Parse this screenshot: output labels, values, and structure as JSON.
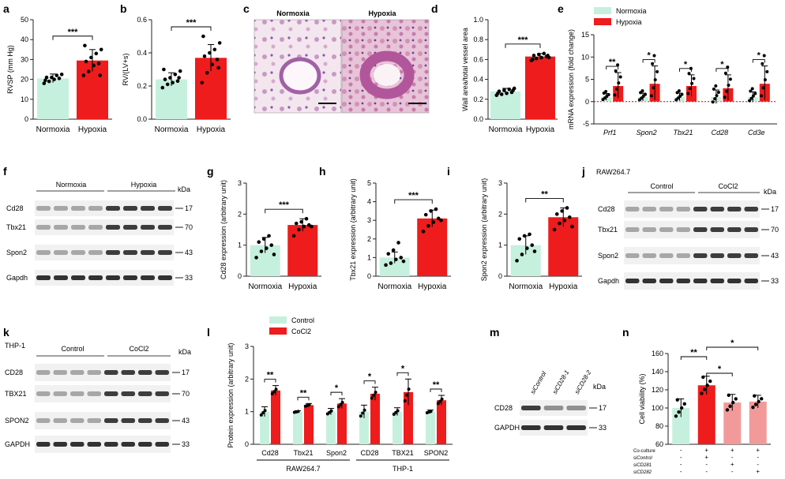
{
  "colors": {
    "normoxia": "#c6f0de",
    "hypoxia": "#ee1c1c",
    "control_light": "#c6f0de",
    "sirna_pink": "#f29a9a",
    "axis": "#222222"
  },
  "panel_letters": [
    "a",
    "b",
    "c",
    "d",
    "e",
    "f",
    "g",
    "h",
    "i",
    "j",
    "k",
    "l",
    "m",
    "n"
  ],
  "chart_data": [
    {
      "id": "a",
      "type": "bar",
      "categories": [
        "Normoxia",
        "Hypoxia"
      ],
      "values": [
        20.5,
        29.5
      ],
      "errors": [
        2.2,
        5.5
      ],
      "points": [
        [
          18,
          19,
          20,
          20.5,
          21,
          21,
          22,
          22.5,
          19.5
        ],
        [
          22,
          24,
          27,
          28,
          29,
          31,
          33,
          35,
          37,
          22
        ]
      ],
      "ylabel": "RVSP (mm Hg)",
      "ylim": [
        0,
        50
      ],
      "yticks": [
        0,
        10,
        20,
        30,
        40,
        50
      ],
      "significance": "***",
      "grid": false
    },
    {
      "id": "b",
      "type": "bar",
      "categories": [
        "Normoxia",
        "Hypoxia"
      ],
      "values": [
        0.24,
        0.37
      ],
      "errors": [
        0.04,
        0.08
      ],
      "points": [
        [
          0.19,
          0.21,
          0.22,
          0.23,
          0.24,
          0.25,
          0.27,
          0.29,
          0.3,
          0.25
        ],
        [
          0.22,
          0.28,
          0.33,
          0.36,
          0.38,
          0.4,
          0.42,
          0.46,
          0.5,
          0.31
        ]
      ],
      "ylabel": "RV/(LV+s)",
      "ylim": [
        0,
        0.6
      ],
      "yticks": [
        0.0,
        0.2,
        0.4,
        0.6
      ],
      "significance": "***",
      "grid": false
    },
    {
      "id": "d",
      "type": "bar",
      "categories": [
        "Normoxia",
        "Hypoxia"
      ],
      "values": [
        0.28,
        0.63
      ],
      "errors": [
        0.03,
        0.03
      ],
      "points": [
        [
          0.24,
          0.25,
          0.26,
          0.27,
          0.28,
          0.29,
          0.3,
          0.31,
          0.26,
          0.29
        ],
        [
          0.59,
          0.61,
          0.62,
          0.63,
          0.64,
          0.65,
          0.66,
          0.62,
          0.6,
          0.64
        ]
      ],
      "ylabel": "Wall area/total vessel area",
      "ylim": [
        0,
        1.0
      ],
      "yticks": [
        0.0,
        0.2,
        0.4,
        0.6,
        0.8,
        1.0
      ],
      "significance": "***",
      "grid": false
    },
    {
      "id": "e",
      "type": "bar",
      "categories": [
        "Prf1",
        "Spon2",
        "Tbx21",
        "Cd28",
        "Cd3e"
      ],
      "series": [
        {
          "name": "Normoxia",
          "values": [
            1.0,
            1.0,
            1.0,
            1.0,
            1.0
          ],
          "errors": [
            0.8,
            0.9,
            0.9,
            1.6,
            1.2
          ]
        },
        {
          "name": "Hypoxia",
          "values": [
            3.5,
            4.0,
            3.5,
            3.0,
            4.0
          ],
          "errors": [
            3,
            4,
            2.5,
            3,
            4
          ]
        }
      ],
      "ylabel": "mRNA expression (fold change)",
      "ylim": [
        -5,
        15
      ],
      "yticks": [
        -5,
        0,
        5,
        10,
        15
      ],
      "significance": [
        "**",
        "*",
        "*",
        "*",
        "*"
      ],
      "legend": "top",
      "grid": false
    },
    {
      "id": "g",
      "type": "bar",
      "categories": [
        "Normoxia",
        "Hypoxia"
      ],
      "values": [
        1.0,
        1.65
      ],
      "errors": [
        0.25,
        0.2
      ],
      "points": [
        [
          0.6,
          0.8,
          0.9,
          1.0,
          1.1,
          1.2,
          1.3,
          0.7
        ],
        [
          1.3,
          1.5,
          1.6,
          1.65,
          1.7,
          1.75,
          1.85,
          1.6
        ]
      ],
      "ylabel": "Cd28 expression (arbitrary unit)",
      "ylim": [
        0,
        3
      ],
      "yticks": [
        0,
        1,
        2,
        3
      ],
      "significance": "***",
      "grid": false
    },
    {
      "id": "h",
      "type": "bar",
      "categories": [
        "Normoxia",
        "Hypoxia"
      ],
      "values": [
        1.0,
        3.1
      ],
      "errors": [
        0.3,
        0.45
      ],
      "points": [
        [
          0.6,
          0.7,
          0.9,
          1.0,
          1.2,
          1.4,
          1.8,
          0.8
        ],
        [
          2.4,
          2.7,
          2.9,
          3.1,
          3.3,
          3.5,
          3.6,
          3.0
        ]
      ],
      "ylabel": "Tbx21 expression (arbitrary unit)",
      "ylim": [
        0,
        5
      ],
      "yticks": [
        0,
        1,
        2,
        3,
        4,
        5
      ],
      "significance": "***",
      "grid": false
    },
    {
      "id": "i",
      "type": "bar",
      "categories": [
        "Normoxia",
        "Hypoxia"
      ],
      "values": [
        1.0,
        1.9
      ],
      "errors": [
        0.3,
        0.3
      ],
      "points": [
        [
          0.5,
          0.7,
          0.9,
          1.0,
          1.2,
          1.3,
          1.35,
          0.8
        ],
        [
          1.5,
          1.7,
          1.8,
          1.9,
          2.0,
          2.1,
          2.2,
          1.6
        ]
      ],
      "ylabel": "Spon2 expression (arbitrary unit)",
      "ylim": [
        0,
        3
      ],
      "yticks": [
        0,
        1,
        2,
        3
      ],
      "significance": "**",
      "grid": false
    },
    {
      "id": "l",
      "type": "bar",
      "categories": [
        "Cd28",
        "Tbx21",
        "Spon2",
        "CD28",
        "TBX21",
        "SPON2"
      ],
      "series": [
        {
          "name": "Control",
          "values": [
            1.0,
            1.0,
            1.0,
            1.0,
            1.0,
            1.0
          ],
          "errors": [
            0.15,
            0.03,
            0.1,
            0.2,
            0.12,
            0.05
          ]
        },
        {
          "name": "CoCl2",
          "values": [
            1.65,
            1.2,
            1.25,
            1.55,
            1.6,
            1.35
          ],
          "errors": [
            0.15,
            0.05,
            0.15,
            0.2,
            0.4,
            0.15
          ]
        }
      ],
      "groups": [
        "RAW264.7",
        "THP-1"
      ],
      "ylabel": "Protein expression (arbitrary unit)",
      "ylim": [
        0,
        3
      ],
      "yticks": [
        0,
        1,
        2,
        3
      ],
      "significance": [
        "**",
        "**",
        "*",
        "*",
        "*",
        "**"
      ],
      "legend": "top",
      "grid": false
    },
    {
      "id": "n",
      "type": "bar",
      "categories": [
        "1",
        "2",
        "3",
        "4"
      ],
      "values": [
        100,
        125,
        106,
        107
      ],
      "errors": [
        10,
        10,
        9,
        7
      ],
      "colors": [
        "#c6f0de",
        "#ee1c1c",
        "#f29a9a",
        "#f29a9a"
      ],
      "ylabel": "Cell viability (%)",
      "ylim": [
        60,
        160
      ],
      "yticks": [
        60,
        80,
        100,
        120,
        140,
        160
      ],
      "significance_pairs": [
        [
          "1",
          "2",
          "**"
        ],
        [
          "2",
          "3",
          "*"
        ],
        [
          "2",
          "4",
          "*"
        ]
      ],
      "conditions": [
        {
          "label": "Co-culture",
          "values": [
            "-",
            "+",
            "+",
            "+"
          ]
        },
        {
          "label": "siControl",
          "values": [
            "-",
            "+",
            "-",
            "-"
          ]
        },
        {
          "label": "siCD281",
          "values": [
            "-",
            "-",
            "+",
            "-"
          ]
        },
        {
          "label": "siCD282",
          "values": [
            "-",
            "-",
            "-",
            "+"
          ]
        }
      ],
      "grid": false
    }
  ],
  "panel_c": {
    "left_label": "Normoxia",
    "right_label": "Hypoxia"
  },
  "blot_f": {
    "groups": [
      "Normoxia",
      "Hypoxia"
    ],
    "kda_label": "kDa",
    "rows": [
      {
        "label": "Cd28",
        "kda": "17"
      },
      {
        "label": "Tbx21",
        "kda": "70"
      },
      {
        "label": "Spon2",
        "kda": "43"
      },
      {
        "label": "Gapdh",
        "kda": "33"
      }
    ]
  },
  "blot_j": {
    "cell_line": "RAW264.7",
    "groups": [
      "Control",
      "CoCl2"
    ],
    "kda_label": "kDa",
    "rows": [
      {
        "label": "Cd28",
        "kda": "17"
      },
      {
        "label": "Tbx21",
        "kda": "70"
      },
      {
        "label": "Spon2",
        "kda": "43"
      },
      {
        "label": "Gapdh",
        "kda": "33"
      }
    ]
  },
  "blot_k": {
    "cell_line": "THP-1",
    "groups": [
      "Control",
      "CoCl2"
    ],
    "kda_label": "kDa",
    "rows": [
      {
        "label": "CD28",
        "kda": "17"
      },
      {
        "label": "TBX21",
        "kda": "70"
      },
      {
        "label": "SPON2",
        "kda": "43"
      },
      {
        "label": "GAPDH",
        "kda": "33"
      }
    ]
  },
  "blot_m": {
    "lanes": [
      "siControl",
      "siCD28-1",
      "siCD28-2"
    ],
    "kda_label": "kDa",
    "rows": [
      {
        "label": "CD28",
        "kda": "17"
      },
      {
        "label": "GAPDH",
        "kda": "33"
      }
    ]
  },
  "labels": {
    "co": "Co"
  }
}
